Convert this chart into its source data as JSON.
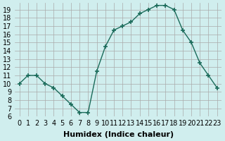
{
  "x": [
    0,
    1,
    2,
    3,
    4,
    5,
    6,
    7,
    8,
    9,
    10,
    11,
    12,
    13,
    14,
    15,
    16,
    17,
    18,
    19,
    20,
    21,
    22,
    23
  ],
  "y": [
    10,
    11,
    11,
    10,
    9.5,
    8.5,
    7.5,
    6.5,
    6.5,
    11.5,
    14.5,
    16.5,
    17,
    17.5,
    18.5,
    19,
    19.5,
    19.5,
    19,
    16.5,
    15,
    12.5,
    11,
    9.5
  ],
  "line_color": "#1a6b5a",
  "marker": "P",
  "bg_color": "#d0eeee",
  "grid_color": "#aaaaaa",
  "xlabel": "Humidex (Indice chaleur)",
  "ylim": [
    6,
    19.8
  ],
  "yticks": [
    6,
    7,
    8,
    9,
    10,
    11,
    12,
    13,
    14,
    15,
    16,
    17,
    18,
    19
  ],
  "xtick_labels": [
    "0",
    "1",
    "2",
    "3",
    "4",
    "5",
    "6",
    "7",
    "8",
    "9",
    "10",
    "11",
    "12",
    "13",
    "14",
    "15",
    "16",
    "17",
    "18",
    "19",
    "20",
    "21",
    "22",
    "23"
  ],
  "xlabel_fontsize": 8,
  "tick_fontsize": 7
}
